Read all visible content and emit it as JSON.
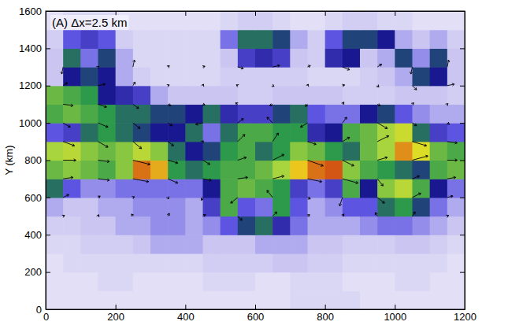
{
  "chart_data": {
    "type": "heatmap",
    "annotation": "(A) Δx=2.5 km",
    "y_label": "Y (km)",
    "xlim": [
      0,
      1200
    ],
    "ylim": [
      0,
      1600
    ],
    "xticks": [
      0,
      200,
      400,
      600,
      800,
      1000,
      1200
    ],
    "yticks": [
      0,
      200,
      400,
      600,
      800,
      1000,
      1200,
      1400,
      1600
    ],
    "zlim": [
      0,
      30
    ],
    "x": [
      25,
      75,
      125,
      175,
      225,
      275,
      325,
      375,
      425,
      475,
      525,
      575,
      625,
      675,
      725,
      775,
      825,
      875,
      925,
      975,
      1025,
      1075,
      1125,
      1175
    ],
    "y": [
      50,
      150,
      250,
      350,
      450,
      550,
      650,
      750,
      850,
      950,
      1050,
      1150,
      1250,
      1350,
      1450,
      1550
    ],
    "z": [
      [
        2,
        2,
        2,
        2,
        2,
        2,
        2,
        2,
        2,
        2,
        2,
        2,
        2,
        2,
        3,
        3,
        3,
        3,
        2,
        2,
        2,
        2,
        2,
        2
      ],
      [
        2,
        2,
        2,
        3,
        3,
        2,
        2,
        2,
        2,
        3,
        3,
        3,
        2,
        2,
        3,
        3,
        3,
        2,
        2,
        2,
        3,
        3,
        2,
        2
      ],
      [
        2,
        3,
        3,
        3,
        3,
        3,
        3,
        3,
        3,
        4,
        4,
        4,
        4,
        5,
        5,
        4,
        4,
        3,
        3,
        3,
        3,
        3,
        3,
        2
      ],
      [
        3,
        3,
        4,
        4,
        4,
        5,
        6,
        6,
        6,
        5,
        5,
        5,
        6,
        6,
        6,
        5,
        5,
        4,
        4,
        4,
        5,
        5,
        4,
        3
      ],
      [
        4,
        4,
        5,
        5,
        6,
        6,
        7,
        7,
        6,
        7,
        9,
        13,
        14,
        11,
        8,
        6,
        6,
        6,
        7,
        8,
        8,
        7,
        6,
        5
      ],
      [
        6,
        5,
        5,
        6,
        6,
        7,
        7,
        7,
        6,
        10,
        16,
        9,
        8,
        15,
        9,
        6,
        7,
        9,
        9,
        14,
        15,
        13,
        8,
        6
      ],
      [
        14,
        9,
        7,
        7,
        8,
        8,
        8,
        8,
        8,
        12,
        16,
        17,
        16,
        15,
        10,
        8,
        10,
        16,
        12,
        18,
        20,
        16,
        12,
        8
      ],
      [
        17,
        18,
        17,
        16,
        18,
        27,
        25,
        15,
        14,
        15,
        16,
        16,
        17,
        19,
        24,
        27,
        28,
        18,
        16,
        15,
        14,
        13,
        16,
        17
      ],
      [
        19,
        20,
        18,
        17,
        18,
        20,
        18,
        14,
        12,
        13,
        15,
        16,
        14,
        15,
        18,
        17,
        15,
        14,
        17,
        19,
        26,
        22,
        17,
        16
      ],
      [
        9,
        10,
        14,
        15,
        14,
        13,
        12,
        12,
        14,
        8,
        14,
        16,
        16,
        15,
        15,
        11,
        12,
        16,
        17,
        19,
        21,
        14,
        10,
        9
      ],
      [
        16,
        17,
        16,
        15,
        14,
        14,
        13,
        13,
        12,
        14,
        11,
        10,
        10,
        13,
        14,
        9,
        8,
        8,
        12,
        13,
        9,
        7,
        6,
        6
      ],
      [
        17,
        16,
        15,
        12,
        11,
        10,
        6,
        5,
        5,
        5,
        5,
        4,
        4,
        5,
        5,
        5,
        5,
        4,
        4,
        4,
        5,
        5,
        5,
        4
      ],
      [
        5,
        12,
        13,
        12,
        6,
        4,
        3,
        3,
        3,
        3,
        4,
        4,
        4,
        4,
        4,
        3,
        3,
        3,
        4,
        5,
        6,
        13,
        12,
        5
      ],
      [
        5,
        14,
        8,
        13,
        6,
        3,
        3,
        3,
        3,
        3,
        5,
        10,
        11,
        10,
        5,
        4,
        11,
        12,
        5,
        6,
        13,
        7,
        13,
        5
      ],
      [
        4,
        9,
        10,
        9,
        4,
        3,
        3,
        3,
        3,
        3,
        8,
        14,
        14,
        13,
        6,
        4,
        9,
        13,
        13,
        12,
        6,
        5,
        6,
        4
      ],
      [
        2,
        3,
        3,
        3,
        2,
        2,
        2,
        2,
        2,
        2,
        3,
        4,
        4,
        3,
        2,
        2,
        3,
        4,
        4,
        3,
        3,
        2,
        2,
        2
      ]
    ],
    "vectors": {
      "x": [
        50,
        150,
        250,
        350,
        450,
        550,
        650,
        750,
        850,
        950,
        1050,
        1150,
        50,
        150,
        250,
        350,
        450,
        550,
        650,
        750,
        850,
        950,
        1050,
        1150,
        50,
        150,
        250,
        350,
        450,
        550,
        650,
        750,
        850,
        950,
        1050,
        1150,
        50,
        150,
        250,
        350,
        450,
        550,
        650,
        750,
        850,
        950,
        1050,
        1150,
        50,
        150,
        250,
        350,
        450,
        550,
        650,
        750,
        850,
        950,
        1050,
        1150,
        50,
        150,
        250,
        350,
        450,
        550,
        650,
        750,
        850,
        950,
        1050,
        1150,
        50,
        150,
        250,
        350,
        450,
        550,
        650,
        750,
        850,
        950,
        1050,
        1150,
        50,
        150,
        250,
        350,
        450,
        550,
        650,
        750,
        850,
        950,
        1050,
        1150,
        50,
        150,
        250,
        350,
        450,
        550,
        650,
        750,
        850,
        950,
        1050,
        1150
      ],
      "y": [
        500,
        500,
        500,
        500,
        500,
        500,
        500,
        500,
        500,
        500,
        500,
        500,
        600,
        600,
        600,
        600,
        600,
        600,
        600,
        600,
        600,
        600,
        600,
        600,
        700,
        700,
        700,
        700,
        700,
        700,
        700,
        700,
        700,
        700,
        700,
        700,
        800,
        800,
        800,
        800,
        800,
        800,
        800,
        800,
        800,
        800,
        800,
        800,
        900,
        900,
        900,
        900,
        900,
        900,
        900,
        900,
        900,
        900,
        900,
        900,
        1000,
        1000,
        1000,
        1000,
        1000,
        1000,
        1000,
        1000,
        1000,
        1000,
        1000,
        1000,
        1100,
        1100,
        1100,
        1100,
        1100,
        1100,
        1100,
        1100,
        1100,
        1100,
        1100,
        1100,
        1200,
        1200,
        1200,
        1200,
        1200,
        1200,
        1200,
        1200,
        1200,
        1200,
        1200,
        1200,
        1300,
        1300,
        1300,
        1300,
        1300,
        1300,
        1300,
        1300,
        1300,
        1300,
        1300,
        1300
      ],
      "u": [
        2,
        1,
        -2,
        2,
        4,
        6,
        6,
        3,
        2,
        -3,
        4,
        2,
        8,
        3,
        2,
        1,
        -2,
        -10,
        -8,
        4,
        -4,
        10,
        12,
        8,
        14,
        16,
        22,
        14,
        12,
        14,
        16,
        20,
        22,
        8,
        10,
        12,
        18,
        16,
        24,
        14,
        10,
        12,
        16,
        22,
        16,
        14,
        22,
        14,
        16,
        14,
        12,
        8,
        1,
        10,
        8,
        12,
        10,
        16,
        20,
        14,
        10,
        14,
        10,
        6,
        -10,
        8,
        -8,
        -10,
        6,
        14,
        6,
        3,
        14,
        12,
        8,
        4,
        3,
        -3,
        -4,
        -3,
        2,
        4,
        2,
        1,
        6,
        10,
        3,
        2,
        1,
        -2,
        2,
        1,
        3,
        2,
        6,
        10,
        -2,
        1,
        2,
        2,
        3,
        8,
        10,
        4,
        10,
        6,
        -2,
        2
      ],
      "v": [
        1,
        2,
        3,
        4,
        2,
        -6,
        6,
        2,
        3,
        5,
        6,
        1,
        4,
        2,
        1,
        -2,
        -4,
        -8,
        10,
        -2,
        -12,
        -8,
        6,
        2,
        2,
        -2,
        -4,
        -6,
        -2,
        2,
        4,
        -4,
        -6,
        -10,
        4,
        2,
        0,
        -2,
        -6,
        -4,
        -6,
        4,
        8,
        -8,
        -8,
        4,
        6,
        0,
        -6,
        -8,
        -10,
        -6,
        1,
        10,
        12,
        -4,
        6,
        8,
        -6,
        -2,
        -6,
        -6,
        -8,
        -4,
        -2,
        6,
        8,
        -6,
        8,
        -8,
        -4,
        -2,
        -2,
        -4,
        -6,
        -2,
        -1,
        2,
        -2,
        -3,
        3,
        -2,
        2,
        1,
        4,
        2,
        5,
        1,
        2,
        1,
        -1,
        2,
        1,
        -2,
        -6,
        2,
        -10,
        1,
        10,
        2,
        1,
        -2,
        2,
        2,
        -4,
        4,
        -10,
        10
      ]
    }
  }
}
